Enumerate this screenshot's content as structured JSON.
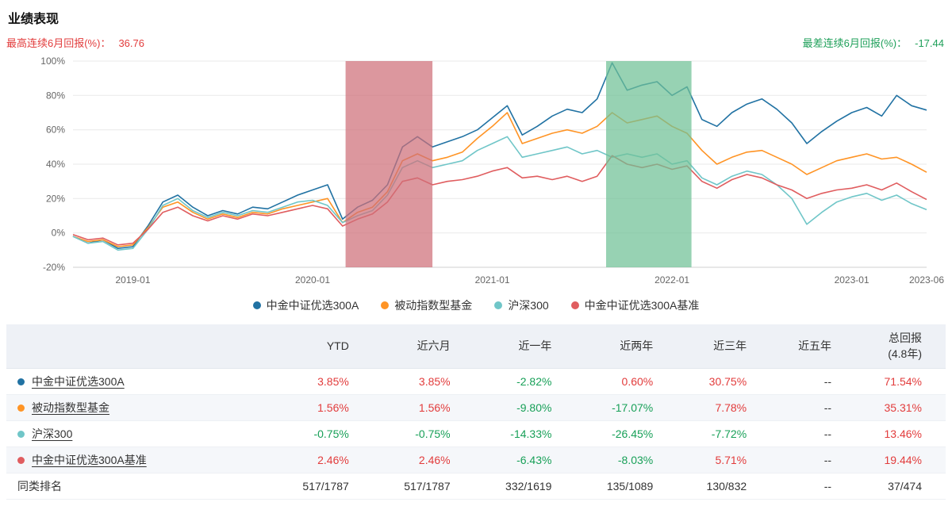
{
  "page": {
    "title": "业绩表现",
    "best_return": {
      "label": "最高连续6月回报(%)：",
      "value": "36.76"
    },
    "worst_return": {
      "label": "最差连续6月回报(%)：",
      "value": "-17.44"
    }
  },
  "colors": {
    "positive": "#e23c3c",
    "negative": "#18a058",
    "plain": "#333333",
    "header_bg": "#eef1f6",
    "alt_row_bg": "#f5f7fa"
  },
  "chart_data": {
    "type": "line",
    "ylim": [
      -20,
      100
    ],
    "y_ticks": [
      100,
      80,
      60,
      40,
      20,
      0,
      -20
    ],
    "y_suffix": "%",
    "n_points": 58,
    "x_start": "2018-09",
    "x_end": "2023-06",
    "x_ticks": [
      {
        "index": 4,
        "label": "2019-01"
      },
      {
        "index": 16,
        "label": "2020-01"
      },
      {
        "index": 28,
        "label": "2021-01"
      },
      {
        "index": 40,
        "label": "2022-01"
      },
      {
        "index": 52,
        "label": "2023-01"
      },
      {
        "index": 57,
        "label": "2023-06"
      }
    ],
    "bands": [
      {
        "name": "best-6month-period-band",
        "from": 18.2,
        "to": 24.0,
        "color": "#cf6f79",
        "opacity": 0.72
      },
      {
        "name": "worst-6month-period-band",
        "from": 35.6,
        "to": 41.3,
        "color": "#6fc096",
        "opacity": 0.72
      }
    ],
    "series": [
      {
        "name": "中金中证优选300A",
        "color": "#2172a3",
        "values": [
          -2,
          -6,
          -4,
          -9,
          -8,
          4,
          18,
          22,
          15,
          10,
          13,
          11,
          15,
          14,
          18,
          22,
          25,
          28,
          8,
          15,
          19,
          28,
          50,
          56,
          50,
          53,
          56,
          60,
          67,
          74,
          57,
          62,
          68,
          72,
          70,
          78,
          99,
          83,
          86,
          88,
          80,
          85,
          66,
          62,
          70,
          75,
          78,
          72,
          64,
          52,
          59,
          65,
          70,
          73,
          68,
          80,
          74,
          71.5
        ]
      },
      {
        "name": "被动指数型基金",
        "color": "#ff9425",
        "values": [
          -2,
          -5,
          -4,
          -8,
          -7,
          3,
          15,
          18,
          12,
          8,
          11,
          9,
          12,
          11,
          14,
          16,
          18,
          20,
          6,
          12,
          15,
          24,
          42,
          46,
          42,
          44,
          47,
          55,
          62,
          70,
          52,
          55,
          58,
          60,
          58,
          62,
          70,
          64,
          66,
          68,
          62,
          58,
          48,
          40,
          44,
          47,
          48,
          44,
          40,
          34,
          38,
          42,
          44,
          46,
          43,
          44,
          40,
          35.3
        ]
      },
      {
        "name": "沪深300",
        "color": "#70c6c8",
        "values": [
          -2,
          -6,
          -5,
          -10,
          -9,
          2,
          16,
          20,
          13,
          9,
          12,
          10,
          13,
          12,
          15,
          18,
          19,
          16,
          6,
          10,
          13,
          22,
          38,
          42,
          38,
          40,
          42,
          48,
          52,
          56,
          44,
          46,
          48,
          50,
          46,
          48,
          44,
          46,
          44,
          46,
          40,
          42,
          32,
          28,
          33,
          36,
          34,
          28,
          20,
          5,
          12,
          18,
          21,
          23,
          19,
          22,
          17,
          13.5
        ]
      },
      {
        "name": "中金中证优选300A基准",
        "color": "#e05d5f",
        "values": [
          -1,
          -4,
          -3,
          -7,
          -6,
          2,
          12,
          15,
          10,
          7,
          10,
          8,
          11,
          10,
          12,
          14,
          16,
          14,
          4,
          8,
          11,
          18,
          30,
          32,
          28,
          30,
          31,
          33,
          36,
          38,
          32,
          33,
          31,
          33,
          30,
          33,
          45,
          40,
          38,
          40,
          37,
          39,
          30,
          26,
          31,
          34,
          32,
          28,
          25,
          20,
          23,
          25,
          26,
          28,
          25,
          29,
          24,
          19.4
        ]
      }
    ]
  },
  "table": {
    "headers": [
      "",
      "YTD",
      "近六月",
      "近一年",
      "近两年",
      "近三年",
      "近五年",
      "总回报\n(4.8年)"
    ],
    "rows": [
      {
        "name": "中金中证优选300A",
        "dot": "#2172a3",
        "link": true,
        "values": [
          "3.85%",
          "3.85%",
          "-2.82%",
          "0.60%",
          "30.75%",
          "--",
          "71.54%"
        ]
      },
      {
        "name": "被动指数型基金",
        "dot": "#ff9425",
        "link": true,
        "values": [
          "1.56%",
          "1.56%",
          "-9.80%",
          "-17.07%",
          "7.78%",
          "--",
          "35.31%"
        ]
      },
      {
        "name": "沪深300",
        "dot": "#70c6c8",
        "link": true,
        "values": [
          "-0.75%",
          "-0.75%",
          "-14.33%",
          "-26.45%",
          "-7.72%",
          "--",
          "13.46%"
        ]
      },
      {
        "name": "中金中证优选300A基准",
        "dot": "#e05d5f",
        "link": true,
        "values": [
          "2.46%",
          "2.46%",
          "-6.43%",
          "-8.03%",
          "5.71%",
          "--",
          "19.44%"
        ]
      },
      {
        "name": "同类排名",
        "dot": null,
        "link": false,
        "values": [
          "517/1787",
          "517/1787",
          "332/1619",
          "135/1089",
          "130/832",
          "--",
          "37/474"
        ]
      }
    ]
  }
}
